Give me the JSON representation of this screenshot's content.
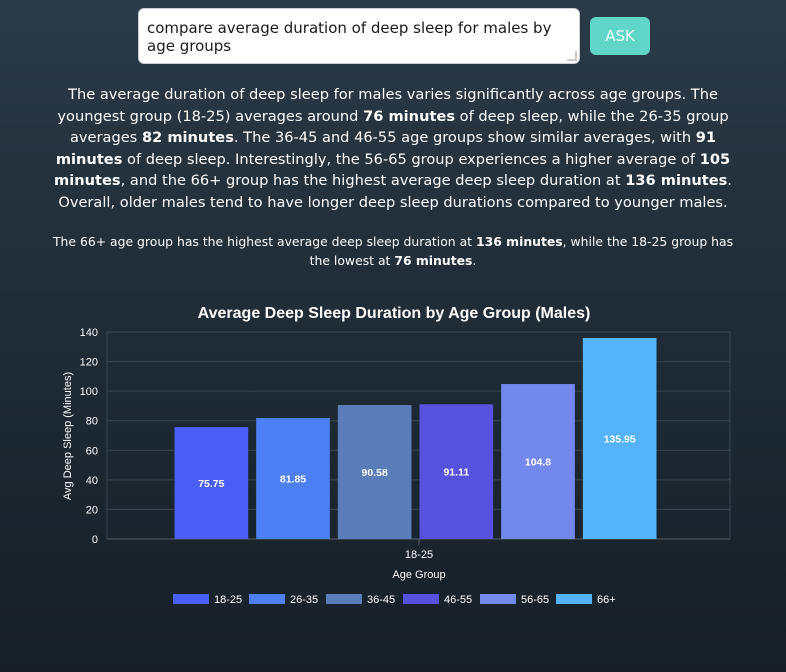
{
  "query": {
    "value": "compare average duration of deep sleep for males by age groups",
    "ask_label": "ASK"
  },
  "answer": {
    "segments": [
      {
        "text": "The average duration of deep sleep for males varies significantly across age groups. The youngest group (18-25) averages around ",
        "bold": false
      },
      {
        "text": "76 minutes",
        "bold": true
      },
      {
        "text": " of deep sleep, while the 26-35 group averages ",
        "bold": false
      },
      {
        "text": "82 minutes",
        "bold": true
      },
      {
        "text": ". The 36-45 and 46-55 age groups show similar averages, with ",
        "bold": false
      },
      {
        "text": "91 minutes",
        "bold": true
      },
      {
        "text": " of deep sleep. Interestingly, the 56-65 group experiences a higher average of ",
        "bold": false
      },
      {
        "text": "105 minutes",
        "bold": true
      },
      {
        "text": ", and the 66+ group has the highest average deep sleep duration at ",
        "bold": false
      },
      {
        "text": "136 minutes",
        "bold": true
      },
      {
        "text": ". Overall, older males tend to have longer deep sleep durations compared to younger males.",
        "bold": false
      }
    ]
  },
  "summary": {
    "segments": [
      {
        "text": "The 66+ age group has the highest average deep sleep duration at ",
        "bold": false
      },
      {
        "text": "136 minutes",
        "bold": true
      },
      {
        "text": ", while the 18-25 group has the lowest at ",
        "bold": false
      },
      {
        "text": "76 minutes",
        "bold": true
      },
      {
        "text": ".",
        "bold": false
      }
    ]
  },
  "chart_data": {
    "type": "bar",
    "title": "Average Deep Sleep Duration by Age Group (Males)",
    "xlabel": "Age Group",
    "ylabel": "Avg Deep Sleep (Minutes)",
    "x_tick_labels": [
      "18-25"
    ],
    "ylim": [
      0,
      140
    ],
    "yticks": [
      0,
      20,
      40,
      60,
      80,
      100,
      120,
      140
    ],
    "grid": true,
    "legend_position": "bottom",
    "series": [
      {
        "name": "18-25",
        "values": [
          75.75
        ],
        "color": "#4a5ff7"
      },
      {
        "name": "26-35",
        "values": [
          81.85
        ],
        "color": "#4d7ff5"
      },
      {
        "name": "36-45",
        "values": [
          90.58
        ],
        "color": "#5a7cb8"
      },
      {
        "name": "46-55",
        "values": [
          91.11
        ],
        "color": "#5751e0"
      },
      {
        "name": "56-65",
        "values": [
          104.8
        ],
        "color": "#7388ec"
      },
      {
        "name": "66+",
        "values": [
          135.95
        ],
        "color": "#55b3fb"
      }
    ]
  }
}
